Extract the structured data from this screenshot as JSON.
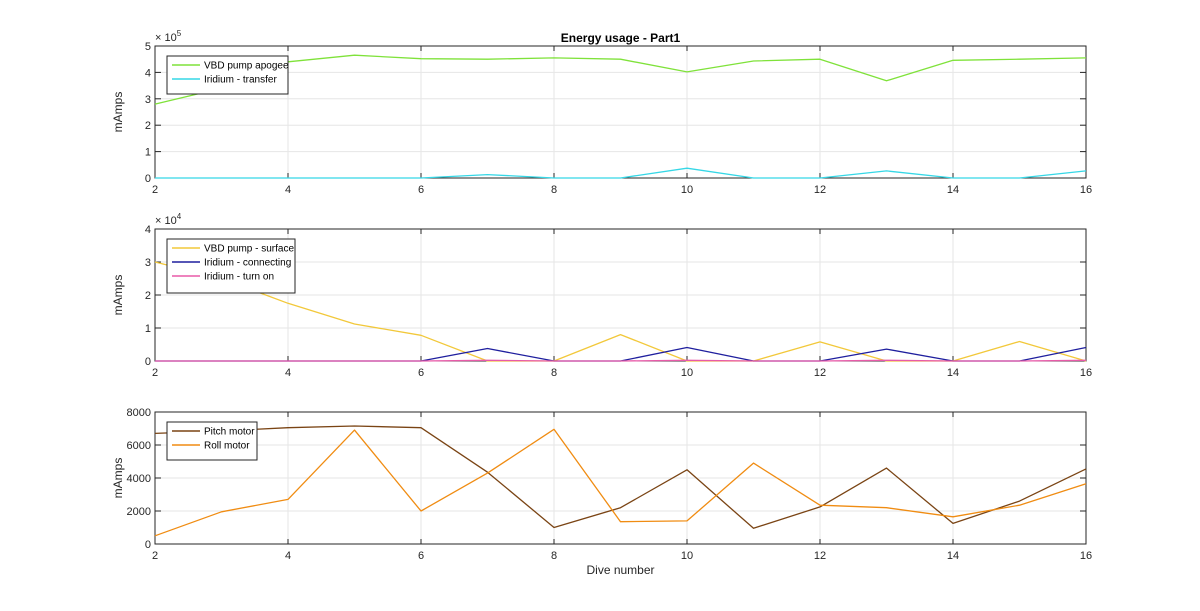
{
  "chart_data": [
    {
      "type": "line",
      "title": "Energy usage - Part1",
      "xlabel": "",
      "ylabel": "mAmps",
      "exponent_label": "× 10",
      "exponent": "5",
      "xlim": [
        2,
        16
      ],
      "ylim": [
        0,
        500000
      ],
      "xticks": [
        "2",
        "4",
        "6",
        "8",
        "10",
        "12",
        "14",
        "16"
      ],
      "yticks": [
        "0",
        "1",
        "2",
        "3",
        "4",
        "5"
      ],
      "grid": true,
      "legend_position": "top-left",
      "series": [
        {
          "name": "VBD pump apogee",
          "color": "#7fe23a",
          "x": [
            2,
            3,
            4,
            5,
            6,
            7,
            8,
            9,
            10,
            11,
            12,
            13,
            14,
            15,
            16
          ],
          "values": [
            280000,
            340000,
            440000,
            465000,
            452000,
            450000,
            455000,
            450000,
            402000,
            443000,
            450000,
            368000,
            446000,
            450000,
            455000
          ]
        },
        {
          "name": "Iridium - transfer",
          "color": "#35d7e6",
          "x": [
            2,
            3,
            4,
            5,
            6,
            7,
            8,
            9,
            10,
            11,
            12,
            13,
            14,
            15,
            16
          ],
          "values": [
            0,
            0,
            0,
            0,
            0,
            13000,
            0,
            0,
            37000,
            0,
            0,
            27000,
            0,
            0,
            27000
          ]
        }
      ]
    },
    {
      "type": "line",
      "title": "",
      "xlabel": "",
      "ylabel": "mAmps",
      "exponent_label": "× 10",
      "exponent": "4",
      "xlim": [
        2,
        16
      ],
      "ylim": [
        0,
        40000
      ],
      "xticks": [
        "2",
        "4",
        "6",
        "8",
        "10",
        "12",
        "14",
        "16"
      ],
      "yticks": [
        "0",
        "1",
        "2",
        "3",
        "4"
      ],
      "grid": true,
      "legend_position": "top-left",
      "series": [
        {
          "name": "VBD pump - surface",
          "color": "#f2c83a",
          "x": [
            2,
            3,
            4,
            5,
            6,
            7,
            8,
            9,
            10,
            11,
            12,
            13,
            14,
            15,
            16
          ],
          "values": [
            30000,
            25000,
            17500,
            11200,
            7800,
            0,
            0,
            8000,
            0,
            0,
            5800,
            0,
            0,
            5900,
            0
          ]
        },
        {
          "name": "Iridium - connecting",
          "color": "#1f1f9e",
          "x": [
            2,
            3,
            4,
            5,
            6,
            7,
            8,
            9,
            10,
            11,
            12,
            13,
            14,
            15,
            16
          ],
          "values": [
            0,
            0,
            0,
            0,
            0,
            3800,
            0,
            0,
            4100,
            0,
            0,
            3600,
            0,
            0,
            4100
          ]
        },
        {
          "name": "Iridium - turn on",
          "color": "#e85aa8",
          "x": [
            2,
            3,
            4,
            5,
            6,
            7,
            8,
            9,
            10,
            11,
            12,
            13,
            14,
            15,
            16
          ],
          "values": [
            0,
            0,
            0,
            0,
            0,
            200,
            0,
            0,
            200,
            0,
            0,
            200,
            0,
            0,
            200
          ]
        }
      ]
    },
    {
      "type": "line",
      "title": "",
      "xlabel": "Dive number",
      "ylabel": "mAmps",
      "xlim": [
        2,
        16
      ],
      "ylim": [
        0,
        8000
      ],
      "xticks": [
        "2",
        "4",
        "6",
        "8",
        "10",
        "12",
        "14",
        "16"
      ],
      "yticks": [
        "0",
        "2000",
        "4000",
        "6000",
        "8000"
      ],
      "grid": true,
      "legend_position": "top-left",
      "series": [
        {
          "name": "Pitch motor",
          "color": "#7a4414",
          "x": [
            2,
            3,
            4,
            5,
            6,
            7,
            8,
            9,
            10,
            11,
            12,
            13,
            14,
            15,
            16
          ],
          "values": [
            6700,
            6850,
            7050,
            7150,
            7050,
            4350,
            1000,
            2200,
            4500,
            950,
            2250,
            4600,
            1250,
            2600,
            4550
          ]
        },
        {
          "name": "Roll motor",
          "color": "#f08c12",
          "x": [
            2,
            3,
            4,
            5,
            6,
            7,
            8,
            9,
            10,
            11,
            12,
            13,
            14,
            15,
            16
          ],
          "values": [
            500,
            1950,
            2700,
            6900,
            2000,
            4300,
            6950,
            1350,
            1400,
            4900,
            2350,
            2200,
            1650,
            2350,
            3650
          ]
        }
      ]
    }
  ]
}
